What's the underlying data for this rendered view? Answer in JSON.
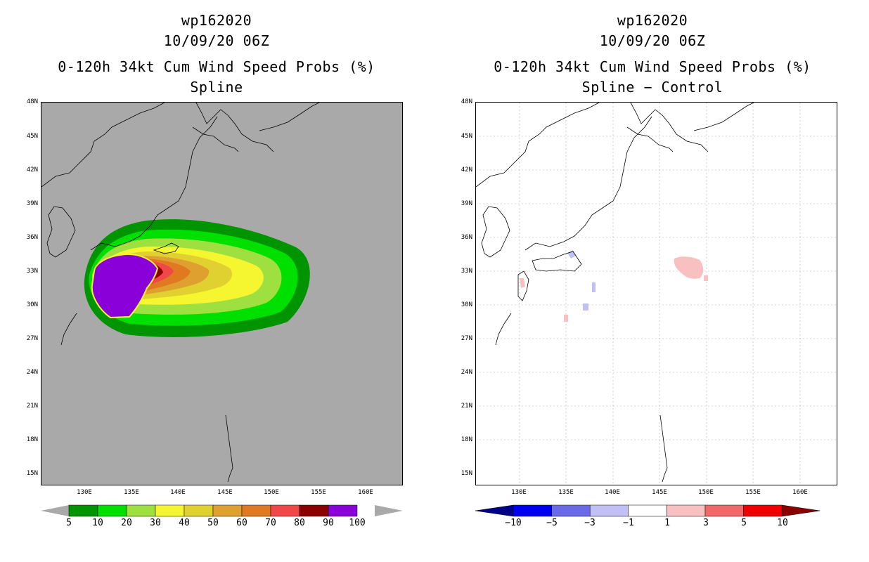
{
  "left": {
    "title_line1": "wp162020",
    "title_line2": "10/09/20 06Z",
    "title_line3": "0-120h 34kt Cum Wind Speed Probs (%)",
    "title_line4": "Spline",
    "colorbar_labels": [
      "5",
      "10",
      "20",
      "30",
      "40",
      "50",
      "60",
      "70",
      "80",
      "90",
      "100"
    ],
    "colorbar_colors": [
      "#009400",
      "#00e000",
      "#9ee040",
      "#f5f530",
      "#e0d030",
      "#e0a030",
      "#e07a20",
      "#f04848",
      "#8b0000",
      "#8a00d8"
    ]
  },
  "right": {
    "title_line1": "wp162020",
    "title_line2": "10/09/20 06Z",
    "title_line3": "0-120h 34kt Cum Wind Speed Probs (%)",
    "title_line4": "Spline − Control",
    "colorbar_labels": [
      "−10",
      "−5",
      "−3",
      "−1",
      "1",
      "3",
      "5",
      "10"
    ],
    "colorbar_colors": [
      "#00008b",
      "#0000f0",
      "#6a6ae8",
      "#c0c0f4",
      "#ffffff",
      "#f8c0c0",
      "#f06868",
      "#f00000",
      "#8b0000"
    ]
  },
  "lat_labels": [
    "48N",
    "45N",
    "42N",
    "39N",
    "36N",
    "33N",
    "30N",
    "27N",
    "24N",
    "21N",
    "18N",
    "15N"
  ],
  "lon_labels": [
    "130E",
    "135E",
    "140E",
    "145E",
    "150E",
    "155E",
    "160E"
  ]
}
